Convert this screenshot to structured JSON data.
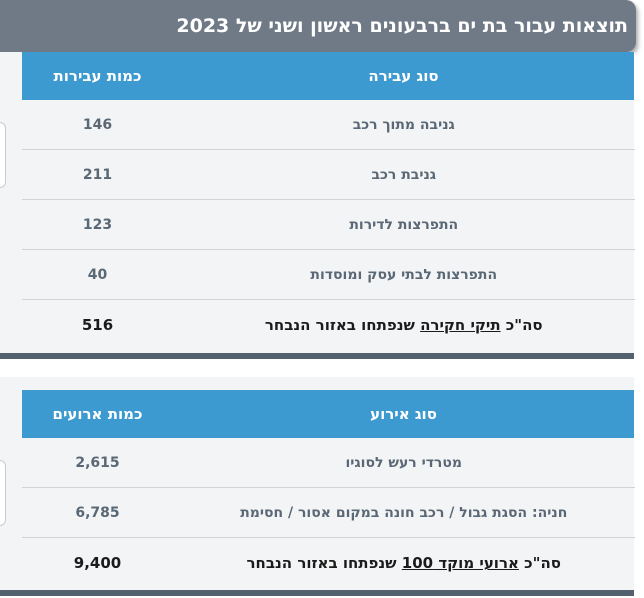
{
  "title": "תוצאות עבור בת ים ברבעונים ראשון ושני של 2023",
  "offenses_table": {
    "header_type": "סוג עבירה",
    "header_count": "כמות עבירות",
    "rows": [
      {
        "type": "גניבה מתוך רכב",
        "count": "146"
      },
      {
        "type": "גניבת רכב",
        "count": "211"
      },
      {
        "type": "התפרצות לדירות",
        "count": "123"
      },
      {
        "type": "התפרצות לבתי עסק ומוסדות",
        "count": "40"
      }
    ],
    "total": {
      "prefix": "סה\"כ ",
      "link": "תיקי חקירה",
      "suffix": " שנפתחו באזור הנבחר",
      "count": "516"
    }
  },
  "events_table": {
    "header_type": "סוג אירוע",
    "header_count": "כמות ארועים",
    "rows": [
      {
        "type": "מטרדי רעש לסוגיו",
        "count": "2,615"
      },
      {
        "type": "חניה: הסגת גבול / רכב חונה במקום אסור / חסימת",
        "count": "6,785"
      }
    ],
    "total": {
      "prefix": "סה\"כ ",
      "link": "ארועי מוקד 100",
      "suffix": " שנפתחו באזור הנבחר",
      "count": "9,400"
    }
  }
}
